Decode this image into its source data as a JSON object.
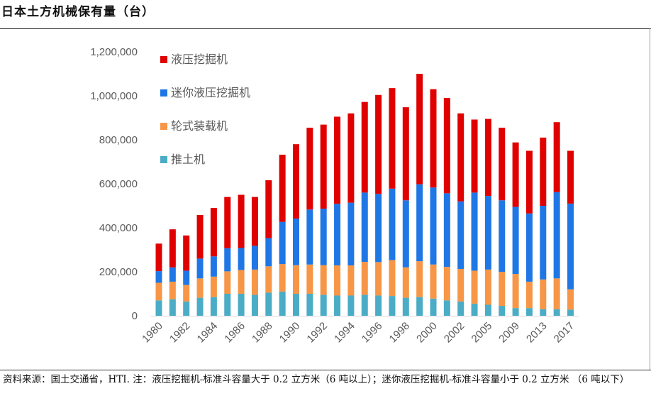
{
  "title": "日本土方机械保有量（台）",
  "note": "资料来源：国土交通省，HTI. 注：液压挖掘机-标准斗容量大于 0.2 立方米（6 吨以上）；迷你液压挖掘机-标准斗容量小于 0.2 立方米 （6 吨以下）",
  "chart_data": {
    "type": "bar",
    "stacked": true,
    "title": "日本土方机械保有量（台）",
    "categories": [
      "1980",
      "1981",
      "1982",
      "1983",
      "1984",
      "1985",
      "1986",
      "1987",
      "1988",
      "1989",
      "1990",
      "1991",
      "1992",
      "1993",
      "1994",
      "1995",
      "1996",
      "1997",
      "1998",
      "1999",
      "2000",
      "2001",
      "2002",
      "2003",
      "2005",
      "2007",
      "2009",
      "2011",
      "2013",
      "2015",
      "2017"
    ],
    "x_tick_labels": [
      "1980",
      "1982",
      "1984",
      "1986",
      "1988",
      "1990",
      "1992",
      "1994",
      "1996",
      "1998",
      "2000",
      "2002",
      "2005",
      "2009",
      "2013",
      "2017"
    ],
    "x_tick_indices": [
      0,
      2,
      4,
      6,
      8,
      10,
      12,
      14,
      16,
      18,
      20,
      22,
      24,
      26,
      28,
      30
    ],
    "y_tick_labels": [
      "0",
      "200,000",
      "400,000",
      "600,000",
      "800,000",
      "1,000,000",
      "1,200,000"
    ],
    "ylim": [
      0,
      1200000
    ],
    "legend_position": "top-left",
    "grid": false,
    "series": [
      {
        "name": "推土机",
        "color": "#4BACC6",
        "values": [
          70000,
          75000,
          65000,
          82000,
          85000,
          100000,
          100000,
          95000,
          105000,
          110000,
          100000,
          100000,
          95000,
          92000,
          92000,
          95000,
          92000,
          90000,
          82000,
          85000,
          78000,
          70000,
          65000,
          55000,
          50000,
          45000,
          35000,
          35000,
          30000,
          30000,
          28000
        ]
      },
      {
        "name": "轮式装载机",
        "color": "#F79646",
        "values": [
          80000,
          80000,
          75000,
          88000,
          93000,
          102000,
          108000,
          115000,
          120000,
          125000,
          130000,
          133000,
          135000,
          137000,
          137000,
          150000,
          152000,
          163000,
          138000,
          163000,
          155000,
          152000,
          148000,
          150000,
          160000,
          155000,
          155000,
          120000,
          135000,
          140000,
          92000
        ]
      },
      {
        "name": "迷你液压挖掘机",
        "color": "#1F77E5",
        "values": [
          53000,
          65000,
          65000,
          90000,
          92000,
          105000,
          100000,
          108000,
          128000,
          192000,
          212000,
          250000,
          257000,
          280000,
          285000,
          315000,
          310000,
          325000,
          305000,
          350000,
          350000,
          335000,
          307000,
          355000,
          335000,
          325000,
          305000,
          310000,
          335000,
          392000,
          390000
        ]
      },
      {
        "name": "液压挖掘机",
        "color": "#E00000",
        "values": [
          125000,
          173000,
          160000,
          198000,
          220000,
          233000,
          242000,
          222000,
          263000,
          305000,
          338000,
          372000,
          382000,
          396000,
          406000,
          412000,
          450000,
          457000,
          423000,
          502000,
          447000,
          433000,
          400000,
          332000,
          350000,
          330000,
          293000,
          285000,
          310000,
          318000,
          240000
        ]
      }
    ]
  }
}
